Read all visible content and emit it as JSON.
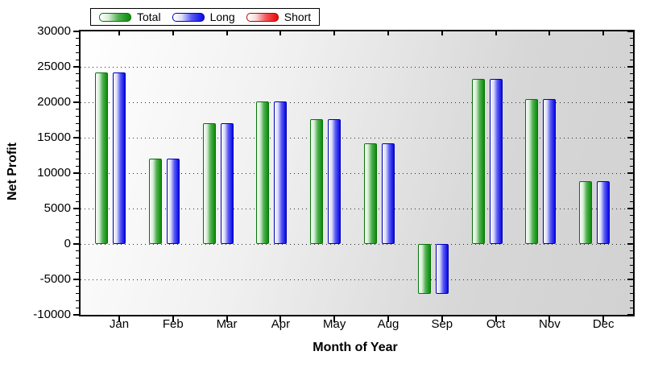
{
  "chart_data": {
    "type": "bar",
    "title": "",
    "xlabel": "Month of Year",
    "ylabel": "Net Profit",
    "categories": [
      "Jan",
      "Feb",
      "Mar",
      "Apr",
      "May",
      "Aug",
      "Sep",
      "Oct",
      "Nov",
      "Dec"
    ],
    "series": [
      {
        "name": "Total",
        "key": "total",
        "values": [
          24200,
          12000,
          17100,
          20100,
          17600,
          14200,
          -7000,
          23350,
          20500,
          8900
        ]
      },
      {
        "name": "Long",
        "key": "long",
        "values": [
          24200,
          12000,
          17100,
          20100,
          17600,
          14200,
          -7000,
          23350,
          20500,
          8900
        ]
      },
      {
        "name": "Short",
        "key": "short",
        "values": [
          0,
          0,
          0,
          0,
          0,
          0,
          0,
          0,
          0,
          0
        ]
      }
    ],
    "ylim": [
      -10000,
      30000
    ],
    "y_major_step": 5000,
    "y_minor_step": 1000,
    "grid": "dotted horizontal lines at major ticks",
    "legend_position": "top"
  },
  "legend": {
    "items": [
      {
        "label": "Total"
      },
      {
        "label": "Long"
      },
      {
        "label": "Short"
      }
    ]
  },
  "y_axis": {
    "tick_labels": [
      "30000",
      "25000",
      "20000",
      "15000",
      "10000",
      "5000",
      "0",
      "-5000",
      "-10000"
    ],
    "gridline_values": [
      25000,
      20000,
      15000,
      10000,
      5000,
      0,
      -5000
    ]
  },
  "colors": {
    "total_border": "#067306",
    "total_fill": "#129012",
    "long_border": "#0000b8",
    "long_fill": "#1212e8",
    "short_border": "#b80000",
    "short_fill": "#e81212",
    "plot_bg_from": "#ffffff",
    "plot_bg_to": "#d2d2d2",
    "frame": "#000000"
  }
}
